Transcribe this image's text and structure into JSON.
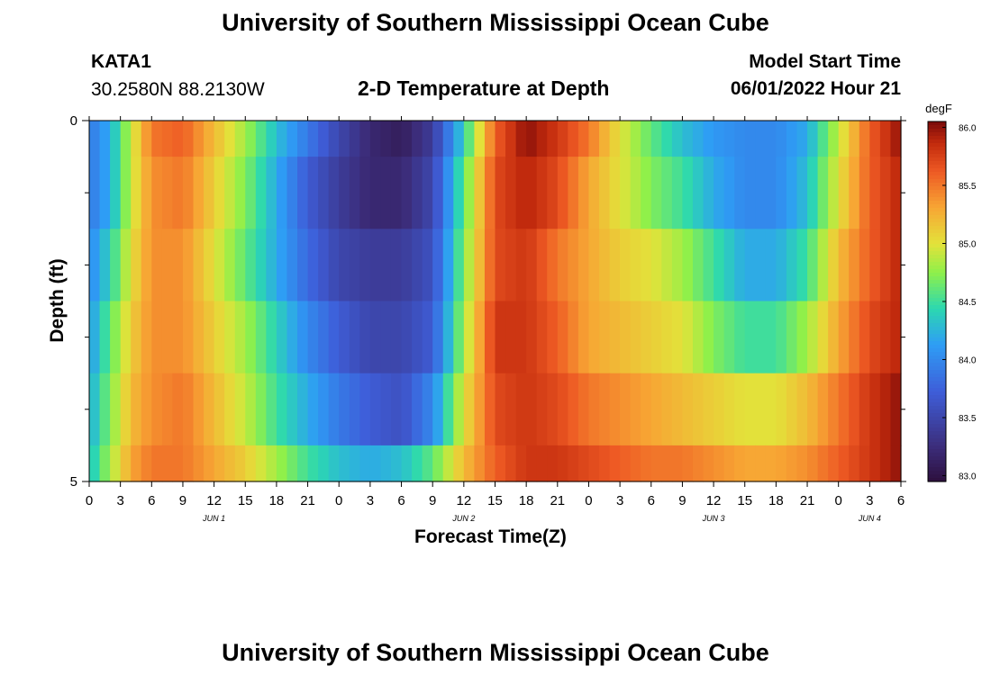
{
  "header": {
    "title": "University of Southern Mississippi Ocean Cube",
    "station": "KATA1",
    "coords": "30.2580N  88.2130W",
    "subtitle": "2-D Temperature at Depth",
    "model_start_label": "Model Start Time",
    "model_start_value": "06/01/2022 Hour 21"
  },
  "footer": {
    "title": "University of Southern Mississippi Ocean Cube"
  },
  "colors": {
    "axis": "#000000",
    "background": "#ffffff"
  },
  "chart_data": {
    "type": "heatmap",
    "title": "2-D Temperature at Depth",
    "xlabel": "Forecast Time(Z)",
    "ylabel": "Depth (ft)",
    "units": "degF",
    "x_hours": [
      0,
      3,
      6,
      9,
      12,
      15,
      18,
      21,
      24,
      27,
      30,
      33,
      36,
      39,
      42,
      45,
      48,
      51,
      54,
      57,
      60,
      63,
      66,
      69,
      72,
      75,
      78
    ],
    "x_tick_labels": [
      "0",
      "3",
      "6",
      "9",
      "12",
      "15",
      "18",
      "21",
      "0",
      "3",
      "6",
      "9",
      "12",
      "15",
      "18",
      "21",
      "0",
      "3",
      "6",
      "9",
      "12",
      "15",
      "18",
      "21",
      "0",
      "3",
      "6"
    ],
    "date_labels": [
      {
        "label": "JUN 1",
        "hour": 12
      },
      {
        "label": "JUN 2",
        "hour": 36
      },
      {
        "label": "JUN 3",
        "hour": 60
      },
      {
        "label": "JUN 4",
        "hour": 75
      }
    ],
    "y_depth_ticks": [
      0,
      5
    ],
    "y_minor_ticks": [
      1,
      2,
      3,
      4
    ],
    "ylim": [
      0,
      5
    ],
    "xlim": [
      0,
      78
    ],
    "colorbar": {
      "label": "degF",
      "min": 82.95,
      "max": 86.05,
      "ticks": [
        "86.0",
        "85.5",
        "85.0",
        "84.5",
        "84.0",
        "83.5",
        "83.0"
      ]
    },
    "depth_layers": [
      0.25,
      1.0,
      2.0,
      3.0,
      4.0,
      4.75
    ],
    "layer_bounds": [
      [
        0,
        0.5
      ],
      [
        0.5,
        1.5
      ],
      [
        1.5,
        2.5
      ],
      [
        2.5,
        3.5
      ],
      [
        3.5,
        4.5
      ],
      [
        4.5,
        5
      ]
    ],
    "time_keypoints_hours": [
      0,
      2,
      4,
      6,
      9,
      12,
      15,
      18,
      21,
      24,
      27,
      30,
      33,
      36,
      39,
      42,
      45,
      48,
      51,
      54,
      57,
      60,
      63,
      66,
      69,
      72,
      75,
      78
    ],
    "temperatures_degF": [
      [
        83.9,
        84.2,
        84.9,
        85.5,
        85.6,
        85.2,
        84.8,
        84.3,
        83.9,
        83.5,
        83.2,
        83.1,
        83.4,
        84.4,
        85.6,
        86.0,
        85.8,
        85.5,
        85.0,
        84.6,
        84.3,
        84.1,
        84.0,
        84.0,
        84.2,
        84.9,
        85.6,
        86.0
      ],
      [
        83.9,
        84.2,
        84.9,
        85.4,
        85.5,
        85.1,
        84.7,
        84.2,
        83.7,
        83.4,
        83.2,
        83.2,
        83.5,
        84.6,
        85.7,
        85.9,
        85.7,
        85.3,
        85.0,
        84.7,
        84.5,
        84.2,
        84.0,
        84.0,
        84.3,
        85.0,
        85.6,
        85.9
      ],
      [
        84.0,
        84.4,
        85.0,
        85.4,
        85.4,
        85.0,
        84.6,
        84.2,
        83.8,
        83.5,
        83.4,
        83.4,
        83.6,
        84.7,
        85.7,
        85.8,
        85.5,
        85.3,
        85.1,
        85.0,
        84.8,
        84.5,
        84.2,
        84.2,
        84.5,
        85.2,
        85.6,
        85.9
      ],
      [
        84.1,
        84.6,
        85.1,
        85.4,
        85.4,
        85.1,
        84.8,
        84.4,
        84.0,
        83.7,
        83.5,
        83.5,
        83.7,
        84.8,
        85.8,
        85.8,
        85.6,
        85.3,
        85.2,
        85.1,
        85.0,
        84.7,
        84.5,
        84.5,
        84.8,
        85.3,
        85.7,
        85.9
      ],
      [
        84.2,
        84.7,
        85.2,
        85.4,
        85.5,
        85.2,
        84.9,
        84.5,
        84.2,
        83.9,
        83.7,
        83.6,
        84.0,
        85.0,
        85.7,
        85.8,
        85.7,
        85.5,
        85.4,
        85.3,
        85.2,
        85.1,
        85.0,
        85.0,
        85.2,
        85.5,
        85.8,
        86.0
      ],
      [
        84.3,
        84.8,
        85.3,
        85.5,
        85.5,
        85.3,
        85.1,
        84.8,
        84.5,
        84.3,
        84.2,
        84.3,
        84.6,
        85.2,
        85.6,
        85.8,
        85.8,
        85.7,
        85.6,
        85.5,
        85.5,
        85.4,
        85.3,
        85.3,
        85.4,
        85.6,
        85.8,
        86.0
      ]
    ]
  }
}
